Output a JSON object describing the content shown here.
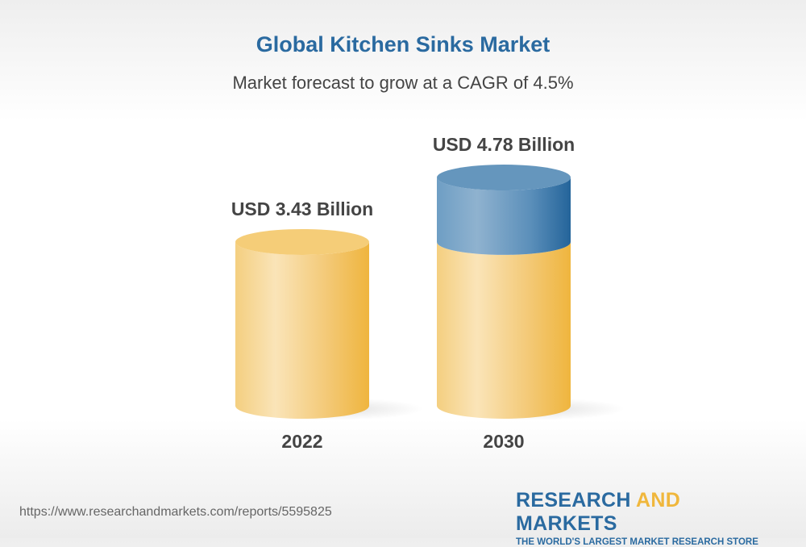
{
  "title": "Global Kitchen Sinks Market",
  "subtitle": "Market forecast to grow at a CAGR of 4.5%",
  "chart_data": {
    "type": "bar",
    "categories": [
      "2022",
      "2030"
    ],
    "values": [
      3.43,
      4.78
    ],
    "data_labels": [
      "USD 3.43 Billion",
      "USD 4.78 Billion"
    ],
    "unit": "USD Billion",
    "colors": {
      "base": "#f0b73c",
      "growth": "#2a6aa0"
    }
  },
  "footer": {
    "url": "https://www.researchandmarkets.com/reports/5595825",
    "logo_part1": "RESEARCH ",
    "logo_part2": "AND",
    "logo_part3": " MARKETS",
    "logo_tagline": "THE WORLD'S LARGEST MARKET RESEARCH STORE"
  }
}
